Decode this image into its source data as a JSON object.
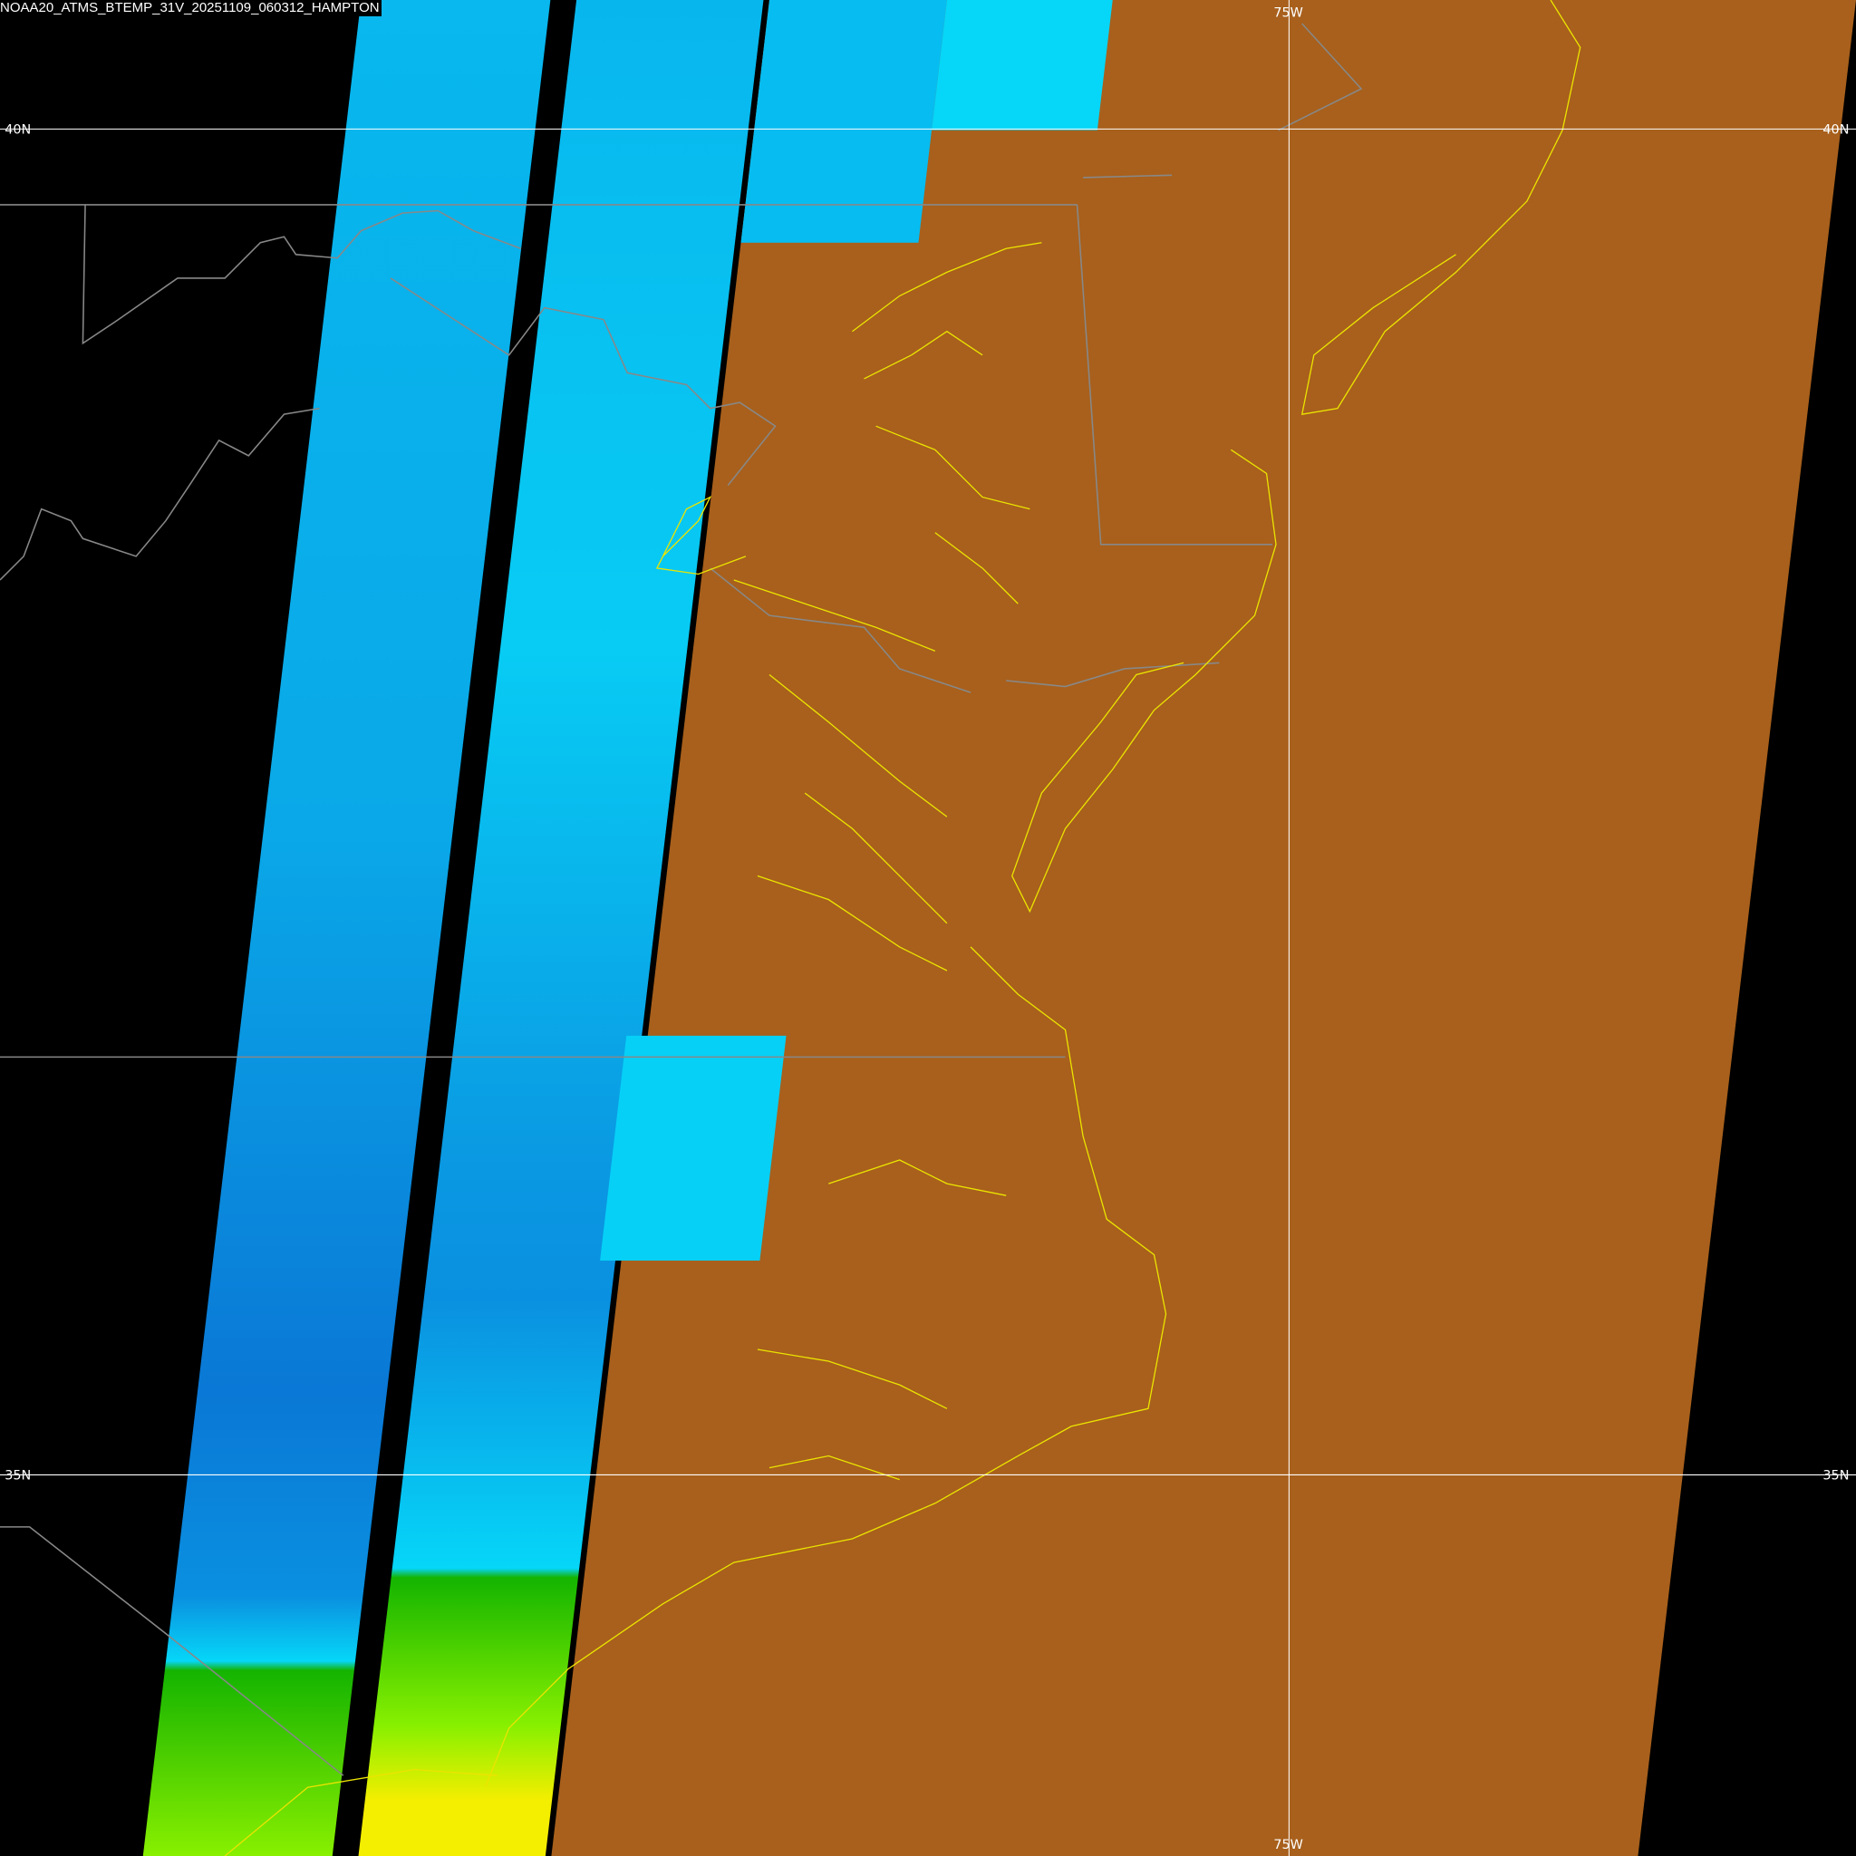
{
  "title": "NOAA20_ATMS_BTEMP_31V_20251109_060312_HAMPTON",
  "grid": {
    "lat_lines": [
      {
        "label": "40N"
      },
      {
        "label": "35N"
      }
    ],
    "lon_lines": [
      {
        "label": "75W"
      }
    ]
  },
  "colors": {
    "background": "#000000",
    "blue_dark": "#0a78d6",
    "blue": "#07b4ec",
    "cyan": "#05d4f8",
    "green": "#14b400",
    "light_green": "#88f000",
    "yellow": "#f4ee00",
    "red": "#f70a05",
    "brown": "#a8601c",
    "coastline": "#e8e000",
    "state_border": "#888888",
    "grid": "#ffffff"
  }
}
